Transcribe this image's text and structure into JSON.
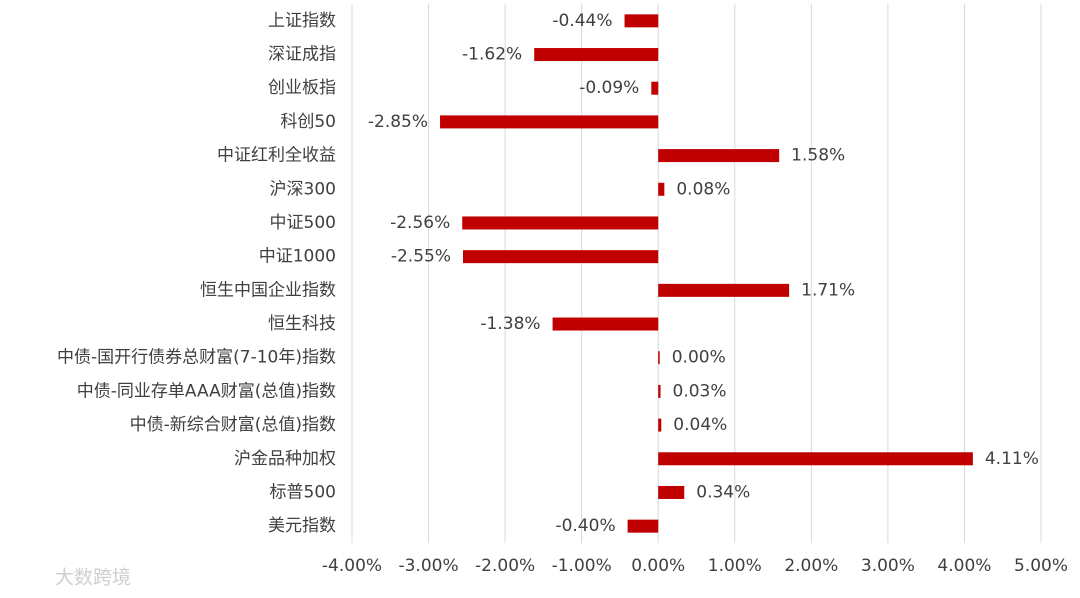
{
  "chart_data": {
    "type": "hbar",
    "categories": [
      "上证指数",
      "深证成指",
      "创业板指",
      "科创50",
      "中证红利全收益",
      "沪深300",
      "中证500",
      "中证1000",
      "恒生中国企业指数",
      "恒生科技",
      "中债-国开行债券总财富(7-10年)指数",
      "中债-同业存单AAA财富(总值)指数",
      "中债-新综合财富(总值)指数",
      "沪金品种加权",
      "标普500",
      "美元指数"
    ],
    "values": [
      -0.44,
      -1.62,
      -0.09,
      -2.85,
      1.58,
      0.08,
      -2.56,
      -2.55,
      1.71,
      -1.38,
      0.0,
      0.03,
      0.04,
      4.11,
      0.34,
      -0.4
    ],
    "value_labels": [
      "-0.44%",
      "-1.62%",
      "-0.09%",
      "-2.85%",
      "1.58%",
      "0.08%",
      "-2.56%",
      "-2.55%",
      "1.71%",
      "-1.38%",
      "0.00%",
      "0.03%",
      "0.04%",
      "4.11%",
      "0.34%",
      "-0.40%"
    ],
    "color": "#c00000",
    "xlim": [
      -4,
      5
    ],
    "xticks": [
      {
        "value": -4,
        "label": "-4.00%"
      },
      {
        "value": -3,
        "label": "-3.00%"
      },
      {
        "value": -2,
        "label": "-2.00%"
      },
      {
        "value": -1,
        "label": "-1.00%"
      },
      {
        "value": 0,
        "label": "0.00%"
      },
      {
        "value": 1,
        "label": "1.00%"
      },
      {
        "value": 2,
        "label": "2.00%"
      },
      {
        "value": 3,
        "label": "3.00%"
      },
      {
        "value": 4,
        "label": "4.00%"
      },
      {
        "value": 5,
        "label": "5.00%"
      }
    ],
    "grid": true,
    "watermark": "大数跨境"
  }
}
